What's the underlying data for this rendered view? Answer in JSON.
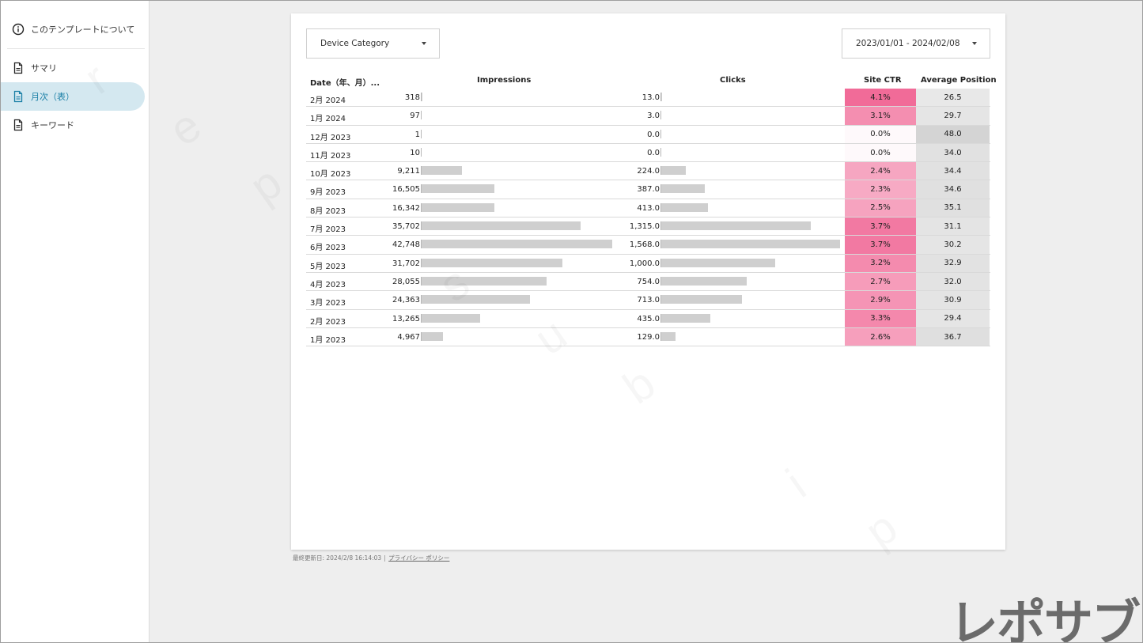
{
  "sidebar": {
    "items": [
      {
        "label": "このテンプレートについて",
        "icon": "info-icon"
      },
      {
        "label": "サマリ",
        "icon": "document-icon"
      },
      {
        "label": "月次（表）",
        "icon": "document-icon"
      },
      {
        "label": "キーワード",
        "icon": "document-icon"
      }
    ],
    "active_index": 2
  },
  "controls": {
    "device_label": "Device Category",
    "date_range": "2023/01/01 - 2024/02/08"
  },
  "table": {
    "headers": {
      "date": "Date（年、月）...",
      "impressions": "Impressions",
      "clicks": "Clicks",
      "ctr": "Site CTR",
      "position": "Average Position"
    },
    "rows": [
      {
        "date": "2月 2024",
        "impressions": "318",
        "imp_value": 318,
        "clicks": "13.0",
        "clk_value": 13,
        "ctr": "4.1%",
        "ctr_value": 4.1,
        "position": "26.5"
      },
      {
        "date": "1月 2024",
        "impressions": "97",
        "imp_value": 97,
        "clicks": "3.0",
        "clk_value": 3,
        "ctr": "3.1%",
        "ctr_value": 3.1,
        "position": "29.7"
      },
      {
        "date": "12月 2023",
        "impressions": "1",
        "imp_value": 1,
        "clicks": "0.0",
        "clk_value": 0,
        "ctr": "0.0%",
        "ctr_value": 0.0,
        "position": "48.0"
      },
      {
        "date": "11月 2023",
        "impressions": "10",
        "imp_value": 10,
        "clicks": "0.0",
        "clk_value": 0,
        "ctr": "0.0%",
        "ctr_value": 0.0,
        "position": "34.0"
      },
      {
        "date": "10月 2023",
        "impressions": "9,211",
        "imp_value": 9211,
        "clicks": "224.0",
        "clk_value": 224,
        "ctr": "2.4%",
        "ctr_value": 2.4,
        "position": "34.4"
      },
      {
        "date": "9月 2023",
        "impressions": "16,505",
        "imp_value": 16505,
        "clicks": "387.0",
        "clk_value": 387,
        "ctr": "2.3%",
        "ctr_value": 2.3,
        "position": "34.6"
      },
      {
        "date": "8月 2023",
        "impressions": "16,342",
        "imp_value": 16342,
        "clicks": "413.0",
        "clk_value": 413,
        "ctr": "2.5%",
        "ctr_value": 2.5,
        "position": "35.1"
      },
      {
        "date": "7月 2023",
        "impressions": "35,702",
        "imp_value": 35702,
        "clicks": "1,315.0",
        "clk_value": 1315,
        "ctr": "3.7%",
        "ctr_value": 3.7,
        "position": "31.1"
      },
      {
        "date": "6月 2023",
        "impressions": "42,748",
        "imp_value": 42748,
        "clicks": "1,568.0",
        "clk_value": 1568,
        "ctr": "3.7%",
        "ctr_value": 3.7,
        "position": "30.2"
      },
      {
        "date": "5月 2023",
        "impressions": "31,702",
        "imp_value": 31702,
        "clicks": "1,000.0",
        "clk_value": 1000,
        "ctr": "3.2%",
        "ctr_value": 3.2,
        "position": "32.9"
      },
      {
        "date": "4月 2023",
        "impressions": "28,055",
        "imp_value": 28055,
        "clicks": "754.0",
        "clk_value": 754,
        "ctr": "2.7%",
        "ctr_value": 2.7,
        "position": "32.0"
      },
      {
        "date": "3月 2023",
        "impressions": "24,363",
        "imp_value": 24363,
        "clicks": "713.0",
        "clk_value": 713,
        "ctr": "2.9%",
        "ctr_value": 2.9,
        "position": "30.9"
      },
      {
        "date": "2月 2023",
        "impressions": "13,265",
        "imp_value": 13265,
        "clicks": "435.0",
        "clk_value": 435,
        "ctr": "3.3%",
        "ctr_value": 3.3,
        "position": "29.4"
      },
      {
        "date": "1月 2023",
        "impressions": "4,967",
        "imp_value": 4967,
        "clicks": "129.0",
        "clk_value": 129,
        "ctr": "2.6%",
        "ctr_value": 2.6,
        "position": "36.7"
      }
    ]
  },
  "footer": {
    "updated": "最終更新日: 2024/2/8 16:14:03",
    "privacy": "プライバシー ポリシー"
  },
  "brand_logo": "レポサブ",
  "colors": {
    "ctr_heat": "#f06292",
    "position_heat": "#d6d6d6",
    "bar": "#cfcfcf",
    "active_nav": "#d4e8f0",
    "active_nav_text": "#1a7fa6"
  }
}
